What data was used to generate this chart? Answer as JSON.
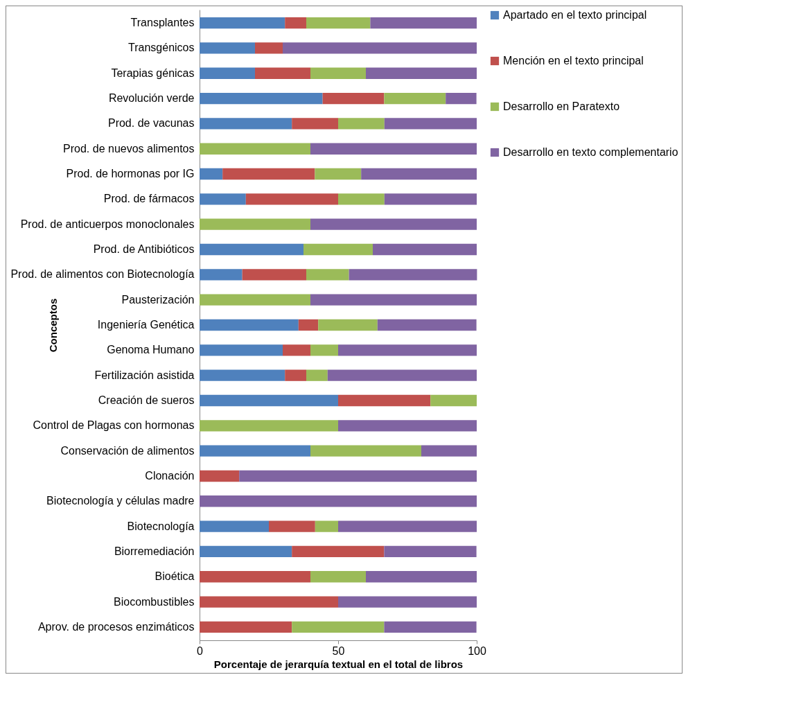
{
  "chart_data": {
    "type": "bar",
    "orientation": "horizontal",
    "stacked": true,
    "xlabel": "Porcentaje de jerarquía textual en el total de libros",
    "ylabel": "Conceptos",
    "legend": "right",
    "categories": [
      "Transplantes",
      "Transgénicos",
      "Terapias génicas",
      "Revolución verde",
      "Prod. de vacunas",
      "Prod. de nuevos alimentos",
      "Prod. de hormonas por IG",
      "Prod. de fármacos",
      "Prod. de anticuerpos monoclonales",
      "Prod. de Antibióticos",
      "Prod. de alimentos con Biotecnología",
      "Pausterización",
      "Ingeniería Genética",
      "Genoma Humano",
      "Fertilización asistida",
      "Creación de sueros",
      "Control de Plagas con hormonas",
      "Conservación de alimentos",
      "Clonación",
      "Biotecnología y células madre",
      "Biotecnología",
      "Biorremediación",
      "Bioética",
      "Biocombustibles",
      "Aprov. de procesos enzimáticos"
    ],
    "series": [
      {
        "name": "Apartado en el texto principal",
        "color": "#4f81bd",
        "values": [
          30.8,
          20,
          20,
          44.4,
          33.3,
          0,
          8.3,
          16.7,
          0,
          37.5,
          15.4,
          0,
          35.7,
          30,
          30.8,
          50,
          0,
          40,
          0,
          0,
          25,
          33.3,
          0,
          0,
          0
        ]
      },
      {
        "name": "Mención en el texto principal",
        "color": "#c0504d",
        "values": [
          7.7,
          10,
          20,
          22.2,
          16.7,
          0,
          33.3,
          33.3,
          0,
          0,
          23.1,
          0,
          7.1,
          10,
          7.7,
          33.3,
          0,
          0,
          14.3,
          0,
          16.7,
          33.3,
          40,
          50,
          33.3
        ]
      },
      {
        "name": "Desarrollo en Paratexto",
        "color": "#9bbb59",
        "values": [
          23.1,
          0,
          20,
          22.2,
          16.7,
          40,
          16.7,
          16.7,
          40,
          25,
          15.4,
          40,
          21.4,
          10,
          7.7,
          16.7,
          50,
          40,
          0,
          0,
          8.3,
          0,
          20,
          0,
          33.3
        ]
      },
      {
        "name": "Desarrollo en texto complementario",
        "color": "#8064a2",
        "values": [
          38.4,
          70,
          40,
          11.1,
          33.3,
          60,
          41.7,
          33.3,
          60,
          37.5,
          46.2,
          60,
          35.7,
          50,
          53.8,
          0,
          50,
          20,
          85.7,
          100,
          50,
          33.3,
          40,
          50,
          33.3
        ]
      }
    ],
    "xlim": [
      0,
      100
    ],
    "xticks": [
      0,
      50,
      100
    ]
  }
}
